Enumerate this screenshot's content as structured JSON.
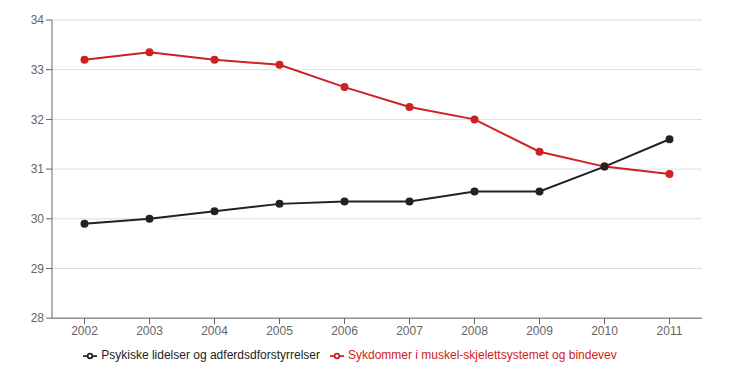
{
  "chart_data": {
    "type": "line",
    "x": [
      2002,
      2003,
      2004,
      2005,
      2006,
      2007,
      2008,
      2009,
      2010,
      2011
    ],
    "series": [
      {
        "name": "Sykdommer i muskel-skjelettsystemet og bindevev",
        "color": "#cc2222",
        "marker": "circle",
        "values": [
          33.2,
          33.35,
          33.2,
          33.1,
          32.65,
          32.25,
          32.0,
          31.35,
          31.05,
          30.9
        ]
      },
      {
        "name": "Psykiske lidelser og adferdsdforstyrrelser",
        "color": "#222222",
        "marker": "circle",
        "values": [
          29.9,
          30.0,
          30.15,
          30.3,
          30.35,
          30.35,
          30.55,
          30.55,
          31.05,
          31.6
        ]
      }
    ],
    "xlim": [
      2001.5,
      2011.5
    ],
    "xticks": [
      2002,
      2003,
      2004,
      2005,
      2006,
      2007,
      2008,
      2009,
      2010,
      2011
    ],
    "ylim": [
      28,
      34
    ],
    "yticks": [
      28,
      29,
      30,
      31,
      32,
      33,
      34
    ],
    "grid": "y",
    "legend": "lower center"
  }
}
